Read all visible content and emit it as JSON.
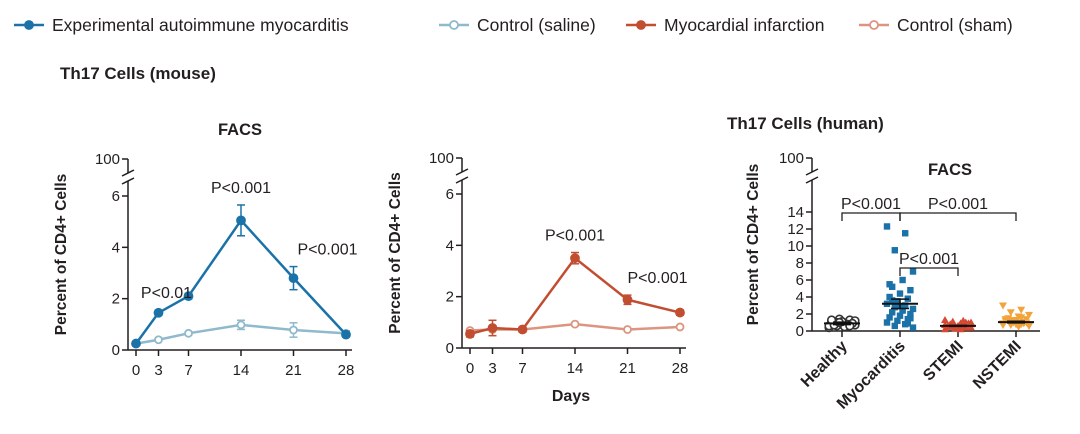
{
  "colors": {
    "eam": "#1a72a8",
    "saline": "#8fb9cc",
    "mi": "#c24e32",
    "sham": "#dc9580",
    "myocarditis_dots": "#1a72a8",
    "stemi_dots": "#d64a33",
    "nstemi_dots": "#f2a43a",
    "healthy_dots": "#333333"
  },
  "legend": [
    {
      "label": "Experimental autoimmune myocarditis",
      "color": "#1a72a8",
      "filled": true
    },
    {
      "label": "Control (saline)",
      "color": "#8fb9cc",
      "filled": false
    },
    {
      "label": "Myocardial infarction",
      "color": "#c24e32",
      "filled": true
    },
    {
      "label": "Control (sham)",
      "color": "#dc9580",
      "filled": false
    }
  ],
  "section_titles": {
    "mouse": "Th17 Cells (mouse)",
    "human": "Th17 Cells (human)"
  },
  "chart_data": [
    {
      "type": "line",
      "title": "FACS",
      "xlabel": "",
      "ylabel": "Percent of CD4+ Cells",
      "x": [
        0,
        3,
        7,
        14,
        21,
        28
      ],
      "ylim": [
        0,
        6
      ],
      "y_ticks": [
        "0",
        "2",
        "4",
        "6",
        "100"
      ],
      "x_ticks": [
        "0",
        "3",
        "7",
        "14",
        "21",
        "28"
      ],
      "axis_break": true,
      "series": [
        {
          "name": "Experimental autoimmune myocarditis",
          "values": [
            0.25,
            1.45,
            2.1,
            5.05,
            2.8,
            0.6
          ],
          "errors": [
            0.05,
            0.1,
            0.1,
            0.6,
            0.45,
            0.08
          ]
        },
        {
          "name": "Control (saline)",
          "values": [
            0.25,
            0.4,
            0.65,
            0.98,
            0.78,
            0.65
          ],
          "errors": [
            0.03,
            0.05,
            0.06,
            0.18,
            0.28,
            0.1
          ]
        }
      ],
      "annotations": [
        {
          "text": "P<0.01",
          "x": 3
        },
        {
          "text": "P<0.001",
          "x": 14
        },
        {
          "text": "P<0.001",
          "x": 21
        }
      ]
    },
    {
      "type": "line",
      "title": "",
      "xlabel": "Days",
      "ylabel": "Percent of CD4+ Cells",
      "x": [
        0,
        3,
        7,
        14,
        21,
        28
      ],
      "ylim": [
        0,
        6
      ],
      "y_ticks": [
        "0",
        "2",
        "4",
        "6",
        "100"
      ],
      "x_ticks": [
        "0",
        "3",
        "7",
        "14",
        "21",
        "28"
      ],
      "axis_break": true,
      "series": [
        {
          "name": "Myocardial infarction",
          "values": [
            0.55,
            0.78,
            0.72,
            3.5,
            1.88,
            1.38
          ],
          "errors": [
            0.12,
            0.3,
            0.1,
            0.22,
            0.18,
            0.1
          ]
        },
        {
          "name": "Control (sham)",
          "values": [
            0.68,
            0.72,
            0.72,
            0.93,
            0.72,
            0.82
          ],
          "errors": [
            0.05,
            0.05,
            0.05,
            0.06,
            0.05,
            0.05
          ]
        }
      ],
      "annotations": [
        {
          "text": "P<0.001",
          "x": 14
        },
        {
          "text": "P<0.001",
          "x": 21
        }
      ]
    },
    {
      "type": "scatter",
      "title": "FACS",
      "xlabel": "",
      "ylabel": "Percent of CD4+ Cells",
      "categories": [
        "Healthy",
        "Myocarditis",
        "STEMI",
        "NSTEMI"
      ],
      "ylim": [
        0,
        14
      ],
      "y_ticks": [
        "0",
        "2",
        "4",
        "6",
        "8",
        "10",
        "12",
        "14",
        "100"
      ],
      "axis_break": true,
      "groups": [
        {
          "name": "Healthy",
          "marker": "circle",
          "mean": 0.9,
          "sem": 0.15,
          "values": [
            0.4,
            0.5,
            0.6,
            0.7,
            0.8,
            0.9,
            1.0,
            1.1,
            1.2,
            1.3,
            1.4,
            0.6,
            0.8,
            1.0,
            1.2,
            0.5,
            0.7,
            0.9,
            1.1,
            1.3,
            0.6,
            1.0
          ]
        },
        {
          "name": "Myocarditis",
          "marker": "square",
          "mean": 3.2,
          "sem": 0.55,
          "values": [
            12.3,
            11.5,
            9.5,
            7.0,
            6.0,
            5.2,
            4.8,
            4.4,
            4.0,
            3.8,
            3.5,
            3.2,
            3.0,
            2.8,
            2.6,
            2.4,
            2.2,
            2.0,
            1.8,
            1.6,
            1.4,
            1.2,
            1.0,
            0.8,
            0.6,
            0.4,
            2.5,
            3.6,
            1.5,
            2.9,
            5.5,
            0.9
          ]
        },
        {
          "name": "STEMI",
          "marker": "triangle",
          "mean": 0.6,
          "sem": 0.06,
          "values": [
            1.3,
            1.2,
            1.1,
            1.0,
            0.9,
            0.8,
            0.7,
            0.6,
            0.5,
            0.4,
            0.3,
            0.2,
            0.8,
            0.6,
            0.4,
            0.7,
            0.5,
            0.9,
            0.3,
            0.6,
            1.0,
            0.5,
            0.7,
            0.4,
            0.6,
            0.8,
            0.2,
            0.5
          ]
        },
        {
          "name": "NSTEMI",
          "marker": "triangle-down",
          "mean": 1.05,
          "sem": 0.1,
          "values": [
            3.0,
            2.5,
            2.2,
            1.9,
            1.7,
            1.5,
            1.4,
            1.3,
            1.2,
            1.1,
            1.0,
            0.9,
            0.8,
            0.7,
            0.6,
            0.5,
            1.2,
            1.0,
            0.8,
            1.4,
            0.9,
            1.1,
            0.7,
            1.6,
            1.3,
            0.6,
            1.0
          ]
        }
      ],
      "annotations": [
        {
          "text": "P<0.001",
          "from": "Healthy",
          "to": "Myocarditis"
        },
        {
          "text": "P<0.001",
          "from": "Myocarditis",
          "to": "NSTEMI"
        },
        {
          "text": "P<0.001",
          "from": "Myocarditis",
          "to": "STEMI"
        }
      ]
    }
  ]
}
